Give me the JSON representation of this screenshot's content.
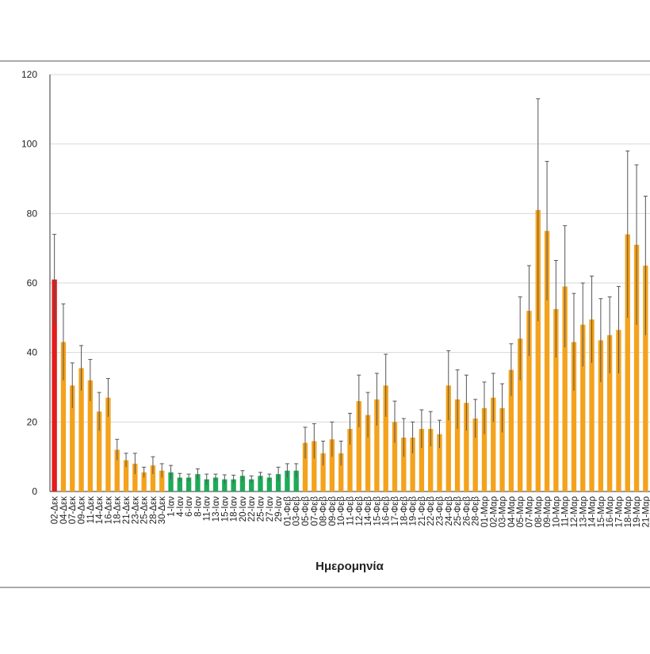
{
  "chart_data": {
    "type": "bar",
    "x_label": "Ημερομηνία",
    "categories": [
      "02-Δεκ",
      "04-Δεκ",
      "07-Δεκ",
      "09-Δεκ",
      "11-Δεκ",
      "14-Δεκ",
      "16-Δεκ",
      "18-Δεκ",
      "21-Δεκ",
      "23-Δεκ",
      "25-Δεκ",
      "28-Δεκ",
      "30-Δεκ",
      "1-Ιαν",
      "4-Ιαν",
      "6-Ιαν",
      "8-Ιαν",
      "11-Ιαν",
      "13-Ιαν",
      "15-Ιαν",
      "18-Ιαν",
      "20-Ιαν",
      "22-Ιαν",
      "25-Ιαν",
      "27-Ιαν",
      "29-Ιαν",
      "01-Φεβ",
      "03-Φεβ",
      "05-Φεβ",
      "07-Φεβ",
      "08-Φεβ",
      "09-Φεβ",
      "10-Φεβ",
      "11-Φεβ",
      "12-Φεβ",
      "14-Φεβ",
      "15-Φεβ",
      "16-Φεβ",
      "17-Φεβ",
      "18-Φεβ",
      "19-Φεβ",
      "21-Φεβ",
      "22-Φεβ",
      "23-Φεβ",
      "24-Φεβ",
      "25-Φεβ",
      "26-Φεβ",
      "28-Φεβ",
      "01-Μαρ",
      "02-Μαρ",
      "03-Μαρ",
      "04-Μαρ",
      "05-Μαρ",
      "07-Μαρ",
      "08-Μαρ",
      "09-Μαρ",
      "10-Μαρ",
      "11-Μαρ",
      "12-Μαρ",
      "13-Μαρ",
      "14-Μαρ",
      "15-Μαρ",
      "16-Μαρ",
      "17-Μαρ",
      "18-Μαρ",
      "19-Μαρ",
      "21-Μαρ"
    ],
    "values": [
      61,
      43,
      30.5,
      35.5,
      32,
      23,
      27,
      12,
      9,
      8,
      5.5,
      7.5,
      6,
      5.5,
      4,
      4,
      5,
      3.5,
      4,
      3.5,
      3.5,
      4.5,
      3.5,
      4.5,
      4,
      5,
      6,
      6,
      14,
      14.5,
      11,
      15,
      11,
      18,
      26,
      22,
      26.5,
      30.5,
      20,
      15.5,
      15.5,
      18,
      18,
      16.5,
      30.5,
      26.5,
      25.5,
      21,
      24,
      27,
      24,
      35,
      44,
      52,
      81,
      75,
      52.5,
      59,
      43,
      48,
      49.5,
      43.5,
      45,
      46.5,
      74,
      71,
      65
    ],
    "errors": [
      13,
      11,
      6.5,
      6.5,
      6,
      5.5,
      5.5,
      3,
      2,
      3,
      1.5,
      2.5,
      2,
      2,
      1.2,
      1,
      1.5,
      1.5,
      1,
      1.3,
      1.2,
      1.5,
      1,
      1,
      1,
      2,
      2,
      2,
      4.5,
      5,
      3.5,
      5,
      3.5,
      4.5,
      7.5,
      6.5,
      7.5,
      9,
      6,
      5.5,
      4.5,
      5.5,
      5,
      4,
      10,
      8.5,
      8,
      5.5,
      7.5,
      7,
      7,
      7.5,
      12,
      13,
      32,
      20,
      14,
      17.5,
      14,
      12,
      12.5,
      12,
      11,
      12.5,
      24,
      23,
      20
    ],
    "colors": [
      "#e41b1b",
      "#f4a21c",
      "#f4a21c",
      "#f4a21c",
      "#f4a21c",
      "#f4a21c",
      "#f4a21c",
      "#f4a21c",
      "#f4a21c",
      "#f4a21c",
      "#f4a21c",
      "#f4a21c",
      "#f4a21c",
      "#1faa59",
      "#1faa59",
      "#1faa59",
      "#1faa59",
      "#1faa59",
      "#1faa59",
      "#1faa59",
      "#1faa59",
      "#1faa59",
      "#1faa59",
      "#1faa59",
      "#1faa59",
      "#1faa59",
      "#1faa59",
      "#1faa59",
      "#f4a21c",
      "#f4a21c",
      "#f4a21c",
      "#f4a21c",
      "#f4a21c",
      "#f4a21c",
      "#f4a21c",
      "#f4a21c",
      "#f4a21c",
      "#f4a21c",
      "#f4a21c",
      "#f4a21c",
      "#f4a21c",
      "#f4a21c",
      "#f4a21c",
      "#f4a21c",
      "#f4a21c",
      "#f4a21c",
      "#f4a21c",
      "#f4a21c",
      "#f4a21c",
      "#f4a21c",
      "#f4a21c",
      "#f4a21c",
      "#f4a21c",
      "#f4a21c",
      "#f4a21c",
      "#f4a21c",
      "#f4a21c",
      "#f4a21c",
      "#f4a21c",
      "#f4a21c",
      "#f4a21c",
      "#f4a21c",
      "#f4a21c",
      "#f4a21c",
      "#f4a21c",
      "#f4a21c",
      "#f4a21c"
    ],
    "ylim": [
      0,
      120
    ],
    "yticks": [
      0,
      20,
      40,
      60,
      80,
      100,
      120
    ],
    "grid": true
  }
}
